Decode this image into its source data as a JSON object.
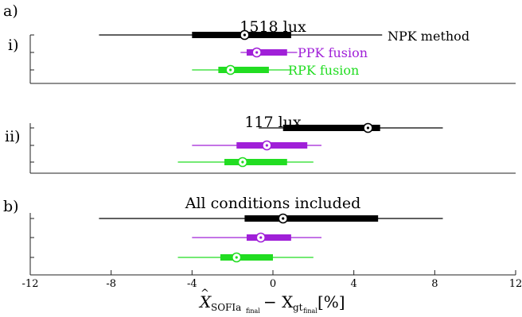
{
  "panel_labels": {
    "a": "a)",
    "i": "i)",
    "ii": "ii)",
    "b": "b)"
  },
  "xlabel": {
    "main": "X",
    "hat": "^",
    "sub1": "SOFIa",
    "sub1sub": "final",
    "minus": " − X",
    "sub2": "gt",
    "sub2sub": "final",
    "unit": " [%]"
  },
  "colors": {
    "npk": "#000000",
    "ppk": "#a020d8",
    "rpk": "#22dd22"
  },
  "chart_data": {
    "type": "boxplot",
    "xlim": [
      -12,
      12
    ],
    "xticks": [
      -12,
      -8,
      -4,
      0,
      4,
      8,
      12
    ],
    "xticklabels": [
      "-12",
      "-8",
      "-4",
      "0",
      "4",
      "8",
      "12"
    ],
    "legend": [
      {
        "name": "NPK method",
        "color": "#000000"
      },
      {
        "name": "PPK fusion",
        "color": "#a020d8"
      },
      {
        "name": "RPK fusion",
        "color": "#22dd22"
      }
    ],
    "panels": [
      {
        "title": "1518 lux",
        "series": [
          {
            "name": "NPK method",
            "color": "#000000",
            "whisker": [
              -8.6,
              5.4
            ],
            "box": [
              -4.0,
              0.9
            ],
            "median": -1.4
          },
          {
            "name": "PPK fusion",
            "color": "#a020d8",
            "whisker": [
              -1.6,
              1.2
            ],
            "box": [
              -1.3,
              0.7
            ],
            "median": -0.8
          },
          {
            "name": "RPK fusion",
            "color": "#22dd22",
            "whisker": [
              -4.0,
              0.9
            ],
            "box": [
              -2.7,
              -0.2
            ],
            "median": -2.1
          }
        ]
      },
      {
        "title": "117 lux",
        "series": [
          {
            "name": "NPK method",
            "color": "#000000",
            "whisker": [
              -0.7,
              8.4
            ],
            "box": [
              0.5,
              5.3
            ],
            "median": 4.7
          },
          {
            "name": "PPK fusion",
            "color": "#a020d8",
            "whisker": [
              -4.0,
              2.4
            ],
            "box": [
              -1.8,
              1.7
            ],
            "median": -0.3
          },
          {
            "name": "RPK fusion",
            "color": "#22dd22",
            "whisker": [
              -4.7,
              2.0
            ],
            "box": [
              -2.4,
              0.7
            ],
            "median": -1.5
          }
        ]
      },
      {
        "title": "All conditions included",
        "series": [
          {
            "name": "NPK method",
            "color": "#000000",
            "whisker": [
              -8.6,
              8.4
            ],
            "box": [
              -1.4,
              5.2
            ],
            "median": 0.5
          },
          {
            "name": "PPK fusion",
            "color": "#a020d8",
            "whisker": [
              -4.0,
              2.4
            ],
            "box": [
              -1.3,
              0.9
            ],
            "median": -0.6
          },
          {
            "name": "RPK fusion",
            "color": "#22dd22",
            "whisker": [
              -4.7,
              2.0
            ],
            "box": [
              -2.6,
              0.0
            ],
            "median": -1.8
          }
        ]
      }
    ]
  }
}
